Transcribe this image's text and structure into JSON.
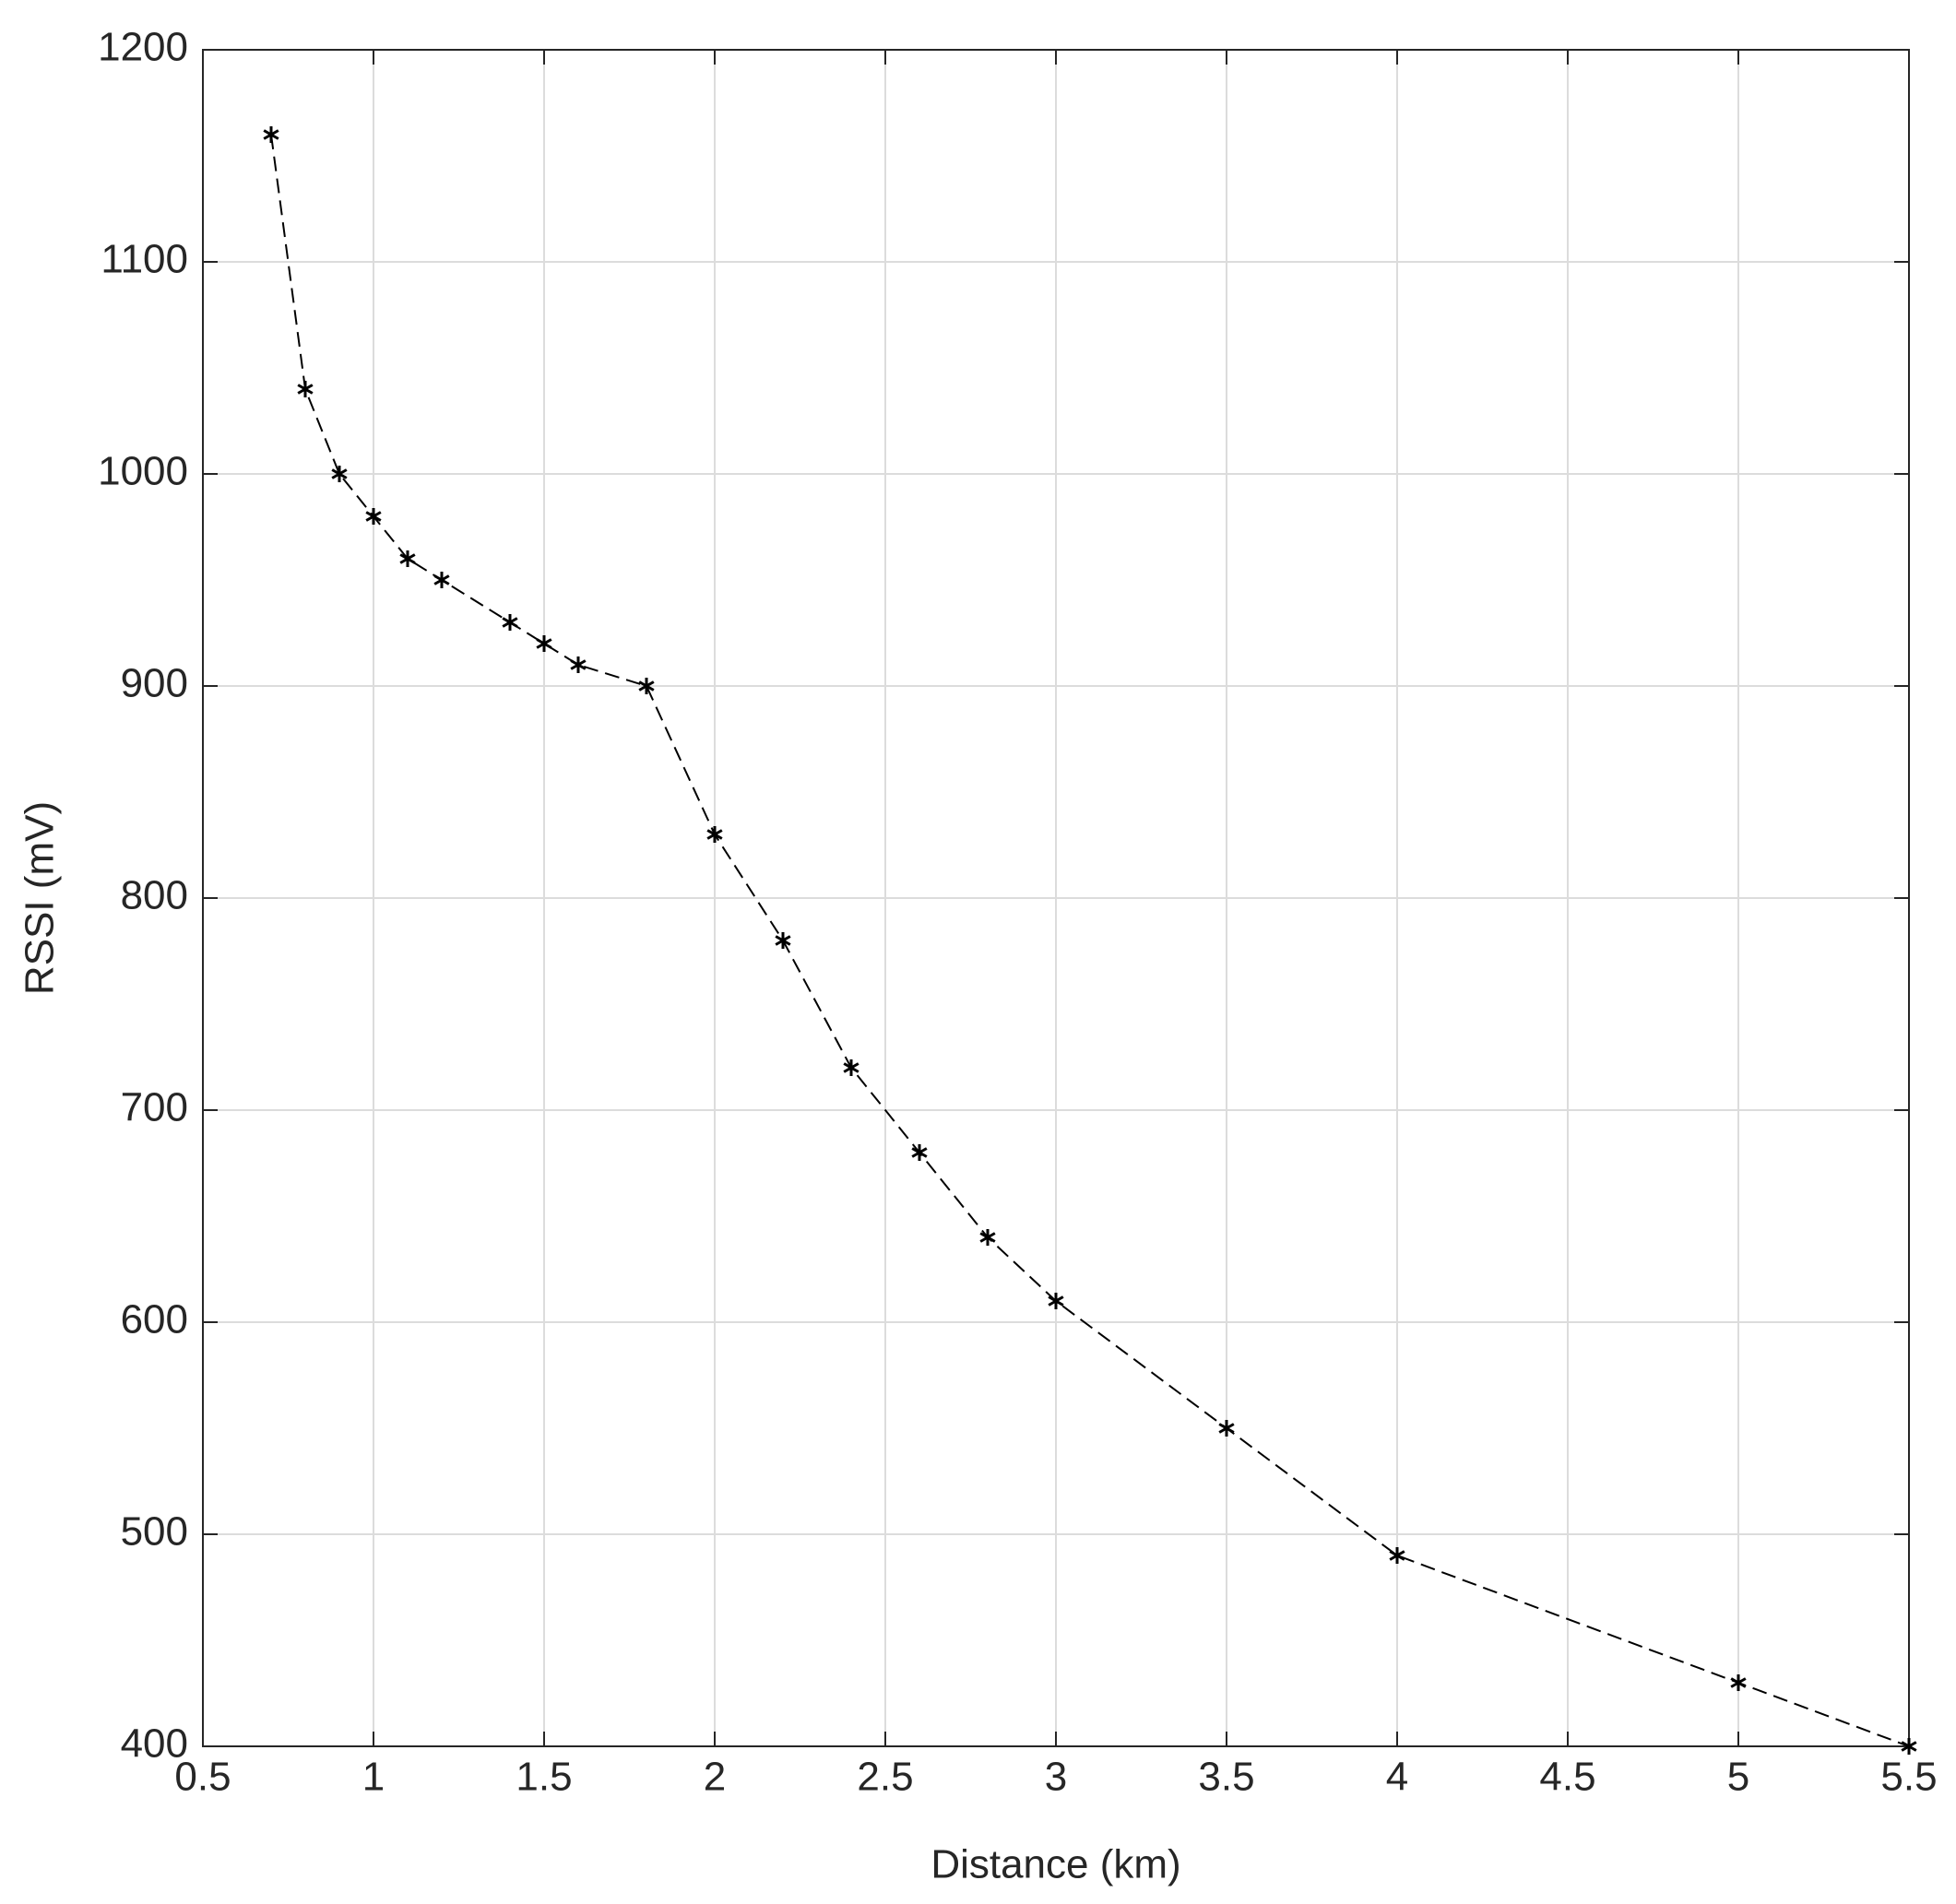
{
  "chart_data": {
    "type": "line",
    "xlabel": "Distance (km)",
    "ylabel": "RSSI (mV)",
    "x": [
      0.7,
      0.8,
      0.9,
      1.0,
      1.1,
      1.2,
      1.4,
      1.5,
      1.6,
      1.8,
      2.0,
      2.2,
      2.4,
      2.6,
      2.8,
      3.0,
      3.5,
      4.0,
      5.0,
      5.5
    ],
    "values": [
      1160,
      1040,
      1000,
      980,
      960,
      950,
      930,
      920,
      910,
      900,
      830,
      780,
      720,
      680,
      640,
      610,
      550,
      490,
      430,
      400
    ],
    "color": "#000000",
    "linestyle": "dashed",
    "marker": "*",
    "xlim": [
      0.5,
      5.5
    ],
    "xticks": [
      0.5,
      1,
      1.5,
      2,
      2.5,
      3,
      3.5,
      4,
      4.5,
      5,
      5.5
    ],
    "ylim": [
      400,
      1200
    ],
    "yticks": [
      400,
      500,
      600,
      700,
      800,
      900,
      1000,
      1100,
      1200
    ],
    "grid": true
  }
}
